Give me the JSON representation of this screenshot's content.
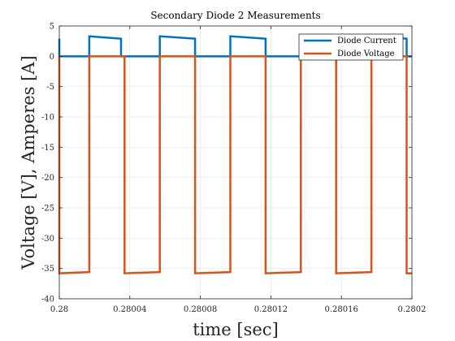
{
  "chart_data": {
    "type": "line",
    "title": "Secondary Diode 2 Measurements",
    "xlabel": "time [sec]",
    "ylabel": "Voltage [V], Amperes [A]",
    "xlim": [
      0.28,
      0.2802
    ],
    "ylim": [
      -40,
      5
    ],
    "xticks": [
      0.28,
      0.28004,
      0.28008,
      0.28012,
      0.28016,
      0.2802
    ],
    "xtick_labels": [
      "0.28",
      "0.28004",
      "0.28008",
      "0.28012",
      "0.28016",
      "0.2802"
    ],
    "yticks": [
      5,
      0,
      -5,
      -10,
      -15,
      -20,
      -25,
      -30,
      -35,
      -40
    ],
    "ytick_labels": [
      "5",
      "0",
      "-5",
      "-10",
      "-15",
      "-20",
      "-25",
      "-30",
      "-35",
      "-40"
    ],
    "grid": true,
    "legend_position": "top-right",
    "series": [
      {
        "name": "Diode Current",
        "color": "#0072BD",
        "x": [
          0.28,
          0.28,
          0.280017,
          0.280017,
          0.280017,
          0.280035,
          0.280035,
          0.280057,
          0.280057,
          0.280077,
          0.280077,
          0.280097,
          0.280097,
          0.280117,
          0.280117,
          0.280137,
          0.280137,
          0.280157,
          0.280157,
          0.280177,
          0.280177,
          0.280197,
          0.280197,
          0.2802
        ],
        "y": [
          2.9,
          0,
          0,
          0,
          3.3,
          2.9,
          0,
          0,
          3.3,
          2.9,
          0,
          0,
          3.3,
          2.9,
          0,
          0,
          3.3,
          2.9,
          0,
          0,
          3.3,
          2.9,
          0,
          0
        ]
      },
      {
        "name": "Diode Voltage",
        "color": "#D95319",
        "x": [
          0.28,
          0.28,
          0.280017,
          0.280017,
          0.280037,
          0.280037,
          0.280057,
          0.280057,
          0.280077,
          0.280077,
          0.280097,
          0.280097,
          0.280117,
          0.280117,
          0.280137,
          0.280137,
          0.280157,
          0.280157,
          0.280177,
          0.280177,
          0.280197,
          0.280197,
          0.2802
        ],
        "y": [
          0,
          -35.8,
          -35.6,
          0,
          0,
          -35.8,
          -35.6,
          0,
          0,
          -35.8,
          -35.6,
          0,
          0,
          -35.8,
          -35.6,
          0,
          0,
          -35.8,
          -35.6,
          0,
          0,
          -35.8,
          -35.8
        ]
      }
    ]
  }
}
